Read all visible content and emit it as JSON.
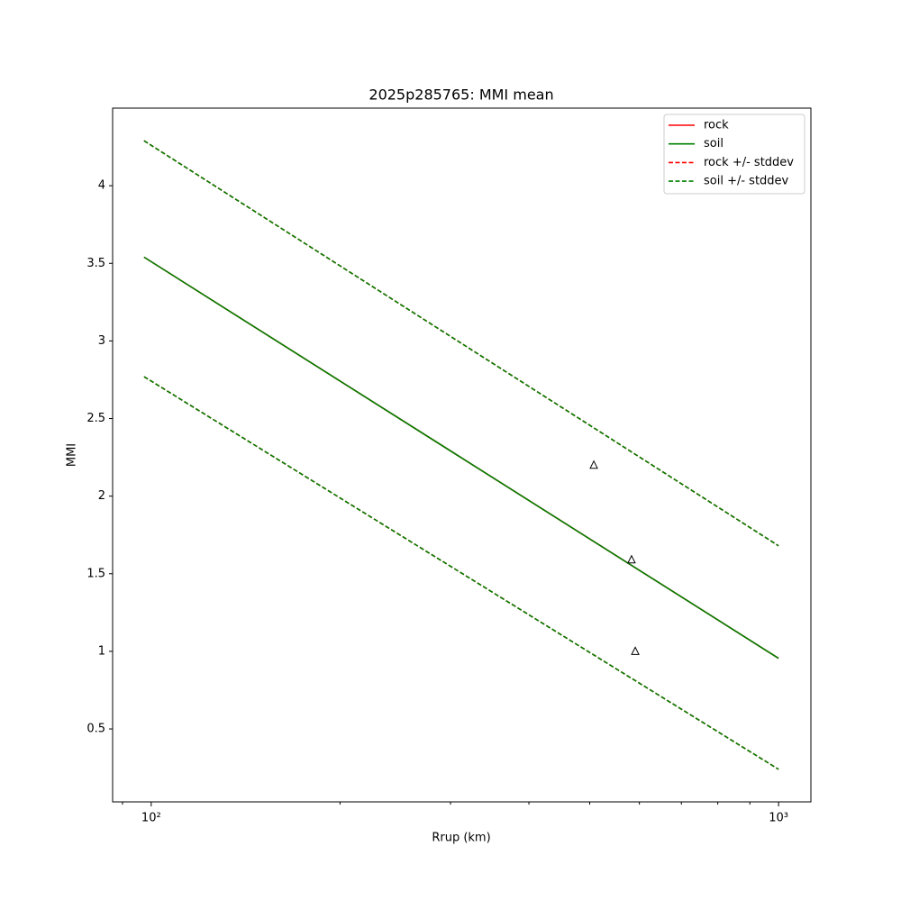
{
  "chart_data": {
    "type": "line",
    "title": "2025p285765: MMI mean",
    "x_label": "Rrup (km)",
    "y_label": "MMI",
    "log_x": true,
    "xlim": [
      86.8,
      1126
    ],
    "ylim": [
      0.03,
      4.5
    ],
    "xticks": [
      {
        "value": 100,
        "label": "10²"
      },
      {
        "value": 1000,
        "label": "10³"
      }
    ],
    "xminorticks": [
      90,
      200,
      300,
      400,
      500,
      600,
      700,
      800,
      900
    ],
    "yticks": [
      0.5,
      1.0,
      1.5,
      2.0,
      2.5,
      3.0,
      3.5,
      4.0
    ],
    "legend": "upper right",
    "x": [
      97.4,
      1000
    ],
    "series": [
      {
        "name": "rock",
        "color": "#ff0000",
        "dash": false,
        "values": [
          3.54,
          0.955
        ]
      },
      {
        "name": "soil",
        "color": "#008000",
        "dash": false,
        "values": [
          3.54,
          0.955
        ]
      },
      {
        "name": "rock +/- stddev",
        "color": "#ff0000",
        "dash": true,
        "upper": [
          4.29,
          1.68
        ],
        "lower": [
          2.77,
          0.24
        ]
      },
      {
        "name": "soil +/- stddev",
        "color": "#008000",
        "dash": true,
        "upper": [
          4.29,
          1.68
        ],
        "lower": [
          2.77,
          0.24
        ]
      }
    ],
    "observations": {
      "x": [
        507.6,
        583,
        591
      ],
      "values": [
        2.2,
        1.59,
        1.0
      ]
    }
  }
}
